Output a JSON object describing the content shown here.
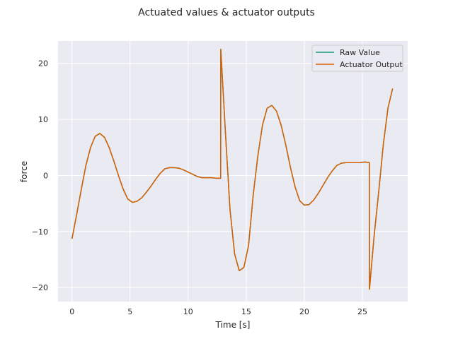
{
  "chart_data": {
    "type": "line",
    "title": "Actuated values & actuator outputs",
    "xlabel": "Time [s]",
    "ylabel": "force",
    "xlim": [
      -1.2,
      28.9
    ],
    "ylim": [
      -22.5,
      24.0
    ],
    "xticks": [
      0,
      5,
      10,
      15,
      20,
      25
    ],
    "yticks": [
      -20,
      -10,
      0,
      10,
      20
    ],
    "xtick_labels": [
      "0",
      "5",
      "10",
      "15",
      "20",
      "25"
    ],
    "ytick_labels": [
      "−20",
      "−10",
      "0",
      "10",
      "20"
    ],
    "grid": true,
    "legend_position": "top-right",
    "background": "#eaeaf2",
    "series": [
      {
        "name": "Raw Value",
        "color": "#1b9e77",
        "x": [
          0,
          0.4,
          0.8,
          1.2,
          1.6,
          2.0,
          2.4,
          2.8,
          3.2,
          3.6,
          4.0,
          4.4,
          4.8,
          5.2,
          5.6,
          6.0,
          6.4,
          6.8,
          7.2,
          7.6,
          8.0,
          8.4,
          8.8,
          9.2,
          9.6,
          10.0,
          10.4,
          10.8,
          11.2,
          11.6,
          12.0,
          12.4,
          12.8,
          12.81,
          13.2,
          13.6,
          14.0,
          14.4,
          14.8,
          15.2,
          15.4,
          15.6,
          16.0,
          16.4,
          16.8,
          17.2,
          17.6,
          18.0,
          18.4,
          18.8,
          19.2,
          19.6,
          20.0,
          20.4,
          20.8,
          21.2,
          21.6,
          22.0,
          22.4,
          22.8,
          23.2,
          23.6,
          24.0,
          24.4,
          24.8,
          25.2,
          25.6,
          25.61,
          26.0,
          26.4,
          26.8,
          27.2,
          27.6
        ],
        "y": [
          -11.3,
          -7.0,
          -2.5,
          1.8,
          5.0,
          7.0,
          7.5,
          6.8,
          5.0,
          2.6,
          0.0,
          -2.4,
          -4.2,
          -4.8,
          -4.6,
          -4.0,
          -3.0,
          -1.9,
          -0.7,
          0.4,
          1.2,
          1.4,
          1.4,
          1.3,
          1.0,
          0.6,
          0.2,
          -0.2,
          -0.4,
          -0.4,
          -0.4,
          -0.5,
          -0.5,
          22.5,
          8.0,
          -6.0,
          -14.0,
          -17.0,
          -16.4,
          -12.5,
          -8.0,
          -3.5,
          3.5,
          9.0,
          12.0,
          12.5,
          11.5,
          9.0,
          5.5,
          1.5,
          -2.0,
          -4.5,
          -5.3,
          -5.2,
          -4.4,
          -3.2,
          -1.8,
          -0.4,
          0.8,
          1.8,
          2.2,
          2.3,
          2.3,
          2.3,
          2.3,
          2.4,
          2.3,
          -20.3,
          -11.0,
          -3.0,
          5.5,
          12.0,
          15.5
        ]
      },
      {
        "name": "Actuator Output",
        "color": "#d95f02",
        "x": [
          0,
          0.4,
          0.8,
          1.2,
          1.6,
          2.0,
          2.4,
          2.8,
          3.2,
          3.6,
          4.0,
          4.4,
          4.8,
          5.2,
          5.6,
          6.0,
          6.4,
          6.8,
          7.2,
          7.6,
          8.0,
          8.4,
          8.8,
          9.2,
          9.6,
          10.0,
          10.4,
          10.8,
          11.2,
          11.6,
          12.0,
          12.4,
          12.8,
          12.81,
          13.2,
          13.6,
          14.0,
          14.4,
          14.8,
          15.2,
          15.4,
          15.6,
          16.0,
          16.4,
          16.8,
          17.2,
          17.6,
          18.0,
          18.4,
          18.8,
          19.2,
          19.6,
          20.0,
          20.4,
          20.8,
          21.2,
          21.6,
          22.0,
          22.4,
          22.8,
          23.2,
          23.6,
          24.0,
          24.4,
          24.8,
          25.2,
          25.6,
          25.61,
          26.0,
          26.4,
          26.8,
          27.2,
          27.6
        ],
        "y": [
          -11.3,
          -7.0,
          -2.5,
          1.8,
          5.0,
          7.0,
          7.5,
          6.8,
          5.0,
          2.6,
          0.0,
          -2.4,
          -4.2,
          -4.8,
          -4.6,
          -4.0,
          -3.0,
          -1.9,
          -0.7,
          0.4,
          1.2,
          1.4,
          1.4,
          1.3,
          1.0,
          0.6,
          0.2,
          -0.2,
          -0.4,
          -0.4,
          -0.4,
          -0.5,
          -0.5,
          22.5,
          8.0,
          -6.0,
          -14.0,
          -17.0,
          -16.4,
          -12.5,
          -8.0,
          -3.5,
          3.5,
          9.0,
          12.0,
          12.5,
          11.5,
          9.0,
          5.5,
          1.5,
          -2.0,
          -4.5,
          -5.3,
          -5.2,
          -4.4,
          -3.2,
          -1.8,
          -0.4,
          0.8,
          1.8,
          2.2,
          2.3,
          2.3,
          2.3,
          2.3,
          2.4,
          2.3,
          -20.3,
          -11.0,
          -3.0,
          5.5,
          12.0,
          15.5
        ]
      }
    ]
  }
}
